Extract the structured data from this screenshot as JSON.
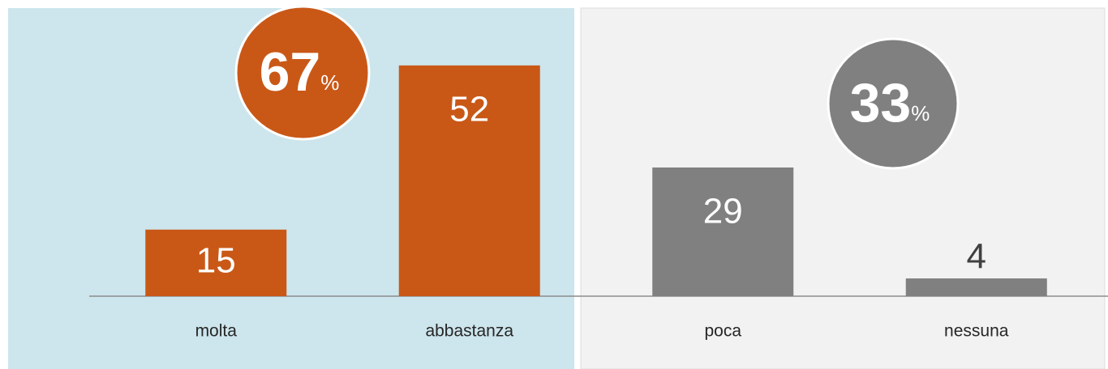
{
  "chart_data": {
    "type": "bar",
    "categories": [
      "molta",
      "abbastanza",
      "poca",
      "nessuna"
    ],
    "values": [
      15,
      52,
      29,
      4
    ],
    "colors": [
      "#c95817",
      "#c95817",
      "#808080",
      "#808080"
    ],
    "ylim": [
      0,
      60
    ],
    "groups": [
      {
        "value": 67,
        "unit": "%",
        "color": "#c95817"
      },
      {
        "value": 33,
        "unit": "%",
        "color": "#808080"
      }
    ]
  }
}
